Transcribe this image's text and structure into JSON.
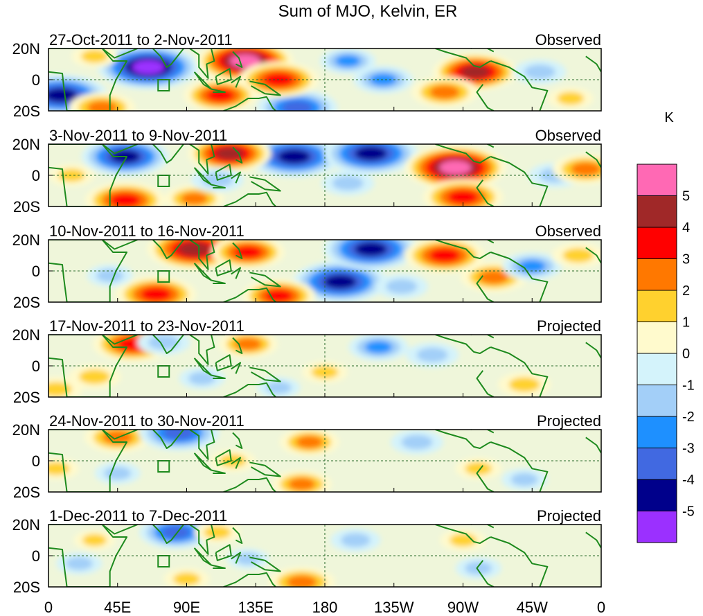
{
  "chart_data": {
    "type": "heatmap",
    "title": "Sum of MJO, Kelvin, ER",
    "units": "K",
    "colorbar": {
      "levels": [
        -5,
        -4,
        -3,
        -2,
        -1,
        0,
        1,
        2,
        3,
        4,
        5
      ],
      "colors": [
        "#9b30ff",
        "#00008b",
        "#4169e1",
        "#1e90ff",
        "#a3cff8",
        "#d4f3fb",
        "#fffacd",
        "#ffd12e",
        "#ff7800",
        "#ff0000",
        "#a02828",
        "#ff69b4"
      ],
      "level_labels": [
        "5",
        "4",
        "3",
        "2",
        "1",
        "0",
        "-1",
        "-2",
        "-3",
        "-4",
        "-5"
      ]
    },
    "x_ticks": [
      "0",
      "45E",
      "90E",
      "135E",
      "180",
      "135W",
      "90W",
      "45W",
      "0"
    ],
    "x_range_deg_east": [
      0,
      360
    ],
    "y_ticks": [
      "20N",
      "0",
      "20S"
    ],
    "y_range_deg": [
      -20,
      20
    ],
    "panels": [
      {
        "label": "27-Oct-2011 to 2-Nov-2011",
        "status": "Observed",
        "anomalies": [
          {
            "lon": 65,
            "lat": 8,
            "value": -5.5
          },
          {
            "lon": 8,
            "lat": -10,
            "value": -5
          },
          {
            "lon": 162,
            "lat": -18,
            "value": -4
          },
          {
            "lon": 128,
            "lat": 12,
            "value": 5.2
          },
          {
            "lon": 150,
            "lat": 0,
            "value": 4
          },
          {
            "lon": 112,
            "lat": -10,
            "value": 3.5
          },
          {
            "lon": 278,
            "lat": 5,
            "value": 4.3
          },
          {
            "lon": 258,
            "lat": -8,
            "value": 3
          },
          {
            "lon": 218,
            "lat": 0,
            "value": -2.5
          },
          {
            "lon": 195,
            "lat": 12,
            "value": -2.2
          },
          {
            "lon": 320,
            "lat": 5,
            "value": -2
          },
          {
            "lon": 35,
            "lat": -18,
            "value": 3
          },
          {
            "lon": 30,
            "lat": 15,
            "value": 1.5
          },
          {
            "lon": 340,
            "lat": -12,
            "value": 1.5
          }
        ]
      },
      {
        "label": "3-Nov-2011 to 9-Nov-2011",
        "status": "Observed",
        "anomalies": [
          {
            "lon": 50,
            "lat": 12,
            "value": -4.5
          },
          {
            "lon": 160,
            "lat": 12,
            "value": -5
          },
          {
            "lon": 210,
            "lat": 14,
            "value": -5
          },
          {
            "lon": 118,
            "lat": 14,
            "value": 4.2
          },
          {
            "lon": 265,
            "lat": 5,
            "value": 5.5
          },
          {
            "lon": 270,
            "lat": -14,
            "value": 4
          },
          {
            "lon": 50,
            "lat": -16,
            "value": 4
          },
          {
            "lon": 95,
            "lat": -15,
            "value": 2.5
          },
          {
            "lon": 110,
            "lat": -3,
            "value": -2
          },
          {
            "lon": 195,
            "lat": -5,
            "value": -2
          },
          {
            "lon": 330,
            "lat": 0,
            "value": -2
          },
          {
            "lon": 350,
            "lat": 4,
            "value": 3
          },
          {
            "lon": 15,
            "lat": 0,
            "value": 1.5
          }
        ]
      },
      {
        "label": "10-Nov-2011 to 16-Nov-2011",
        "status": "Observed",
        "anomalies": [
          {
            "lon": 95,
            "lat": 14,
            "value": 5
          },
          {
            "lon": 130,
            "lat": 12,
            "value": 3.5
          },
          {
            "lon": 190,
            "lat": -7,
            "value": -5
          },
          {
            "lon": 210,
            "lat": 14,
            "value": -5
          },
          {
            "lon": 70,
            "lat": -15,
            "value": 4
          },
          {
            "lon": 150,
            "lat": -16,
            "value": 3.5
          },
          {
            "lon": 258,
            "lat": 10,
            "value": 4
          },
          {
            "lon": 290,
            "lat": -4,
            "value": 3
          },
          {
            "lon": 315,
            "lat": 3,
            "value": -2.5
          },
          {
            "lon": 40,
            "lat": -3,
            "value": -1.5
          },
          {
            "lon": 230,
            "lat": -10,
            "value": -2
          },
          {
            "lon": 345,
            "lat": 10,
            "value": 2
          }
        ]
      },
      {
        "label": "17-Nov-2011 to 23-Nov-2011",
        "status": "Projected",
        "anomalies": [
          {
            "lon": 55,
            "lat": 14,
            "value": 4
          },
          {
            "lon": 130,
            "lat": 14,
            "value": 2.5
          },
          {
            "lon": 30,
            "lat": -7,
            "value": 2
          },
          {
            "lon": 5,
            "lat": -15,
            "value": 2
          },
          {
            "lon": 75,
            "lat": 15,
            "value": -2
          },
          {
            "lon": 215,
            "lat": 12,
            "value": -2.5
          },
          {
            "lon": 250,
            "lat": 7,
            "value": -2
          },
          {
            "lon": 100,
            "lat": -8,
            "value": -1.5
          },
          {
            "lon": 310,
            "lat": -12,
            "value": 2
          },
          {
            "lon": 180,
            "lat": -4,
            "value": 1.5
          },
          {
            "lon": 150,
            "lat": -14,
            "value": -1.3
          }
        ]
      },
      {
        "label": "24-Nov-2011 to 30-Nov-2011",
        "status": "Projected",
        "anomalies": [
          {
            "lon": 45,
            "lat": 15,
            "value": 3
          },
          {
            "lon": 85,
            "lat": 18,
            "value": -4
          },
          {
            "lon": 170,
            "lat": 12,
            "value": 2.5
          },
          {
            "lon": 165,
            "lat": -15,
            "value": 2.5
          },
          {
            "lon": 240,
            "lat": 12,
            "value": -2
          },
          {
            "lon": 280,
            "lat": -5,
            "value": 1.5
          },
          {
            "lon": 45,
            "lat": -8,
            "value": -1.5
          },
          {
            "lon": 120,
            "lat": 0,
            "value": 1.5
          },
          {
            "lon": 5,
            "lat": -5,
            "value": 1.5
          },
          {
            "lon": 310,
            "lat": -12,
            "value": -1.5
          }
        ]
      },
      {
        "label": "1-Dec-2011 to 7-Dec-2011",
        "status": "Projected",
        "anomalies": [
          {
            "lon": 83,
            "lat": 15,
            "value": -3.5
          },
          {
            "lon": 110,
            "lat": 15,
            "value": 1.5
          },
          {
            "lon": 165,
            "lat": -17,
            "value": 3
          },
          {
            "lon": 90,
            "lat": -15,
            "value": 1.5
          },
          {
            "lon": 30,
            "lat": 10,
            "value": 1.2
          },
          {
            "lon": 200,
            "lat": 10,
            "value": -1.8
          },
          {
            "lon": 270,
            "lat": 10,
            "value": 1.5
          },
          {
            "lon": 280,
            "lat": -8,
            "value": -1.5
          },
          {
            "lon": 20,
            "lat": -5,
            "value": -1.5
          },
          {
            "lon": 130,
            "lat": -2,
            "value": -1.2
          }
        ]
      }
    ]
  }
}
